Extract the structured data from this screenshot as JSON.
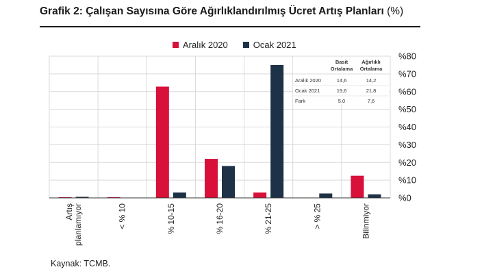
{
  "title": "Grafik 2: Çalışan Sayısına Göre Ağırlıklandırılmış Ücret Artış Planları",
  "title_suffix": "(%)",
  "source": "Kaynak: TCMB.",
  "colors": {
    "series1": "#d8103a",
    "series2": "#1d3147",
    "grid": "#d9d9d9",
    "axis": "#333333"
  },
  "chart_data": {
    "type": "bar",
    "categories": [
      "Artış planlamıyor",
      "< % 10",
      "% 10-15",
      "% 16-20",
      "% 21-25",
      "> % 25",
      "Bilinmiyor"
    ],
    "category_lines": [
      [
        "Artış",
        "planlamıyor"
      ],
      [
        "< % 10"
      ],
      [
        "% 10-15"
      ],
      [
        "% 16-20"
      ],
      [
        "% 21-25"
      ],
      [
        "> % 25"
      ],
      [
        "Bilinmiyor"
      ]
    ],
    "series": [
      {
        "name": "Aralık 2020",
        "values": [
          0.3,
          0.4,
          62.8,
          22.0,
          3.0,
          0.0,
          12.5
        ]
      },
      {
        "name": "Ocak 2021",
        "values": [
          0.6,
          0.0,
          3.0,
          18.0,
          75.0,
          2.5,
          2.0
        ]
      }
    ],
    "ylim": [
      0,
      80
    ],
    "yticks": [
      0,
      10,
      20,
      30,
      40,
      50,
      60,
      70,
      80
    ],
    "ytick_labels": [
      "%0",
      "%10",
      "%20",
      "%30",
      "%40",
      "%50",
      "%60",
      "%70",
      "%80"
    ],
    "y_axis_side": "right",
    "grid": true,
    "legend_position": "top",
    "table": {
      "headers": [
        [
          "Basit",
          "Ortalama"
        ],
        [
          "Ağırlıklı",
          "Ortalama"
        ]
      ],
      "rows": [
        {
          "label": "Aralık 2020",
          "values": [
            "14,6",
            "14,2"
          ]
        },
        {
          "label": "Ocak 2021",
          "values": [
            "19,6",
            "21,8"
          ]
        },
        {
          "label": "Fark",
          "values": [
            "5,0",
            "7,6"
          ]
        }
      ]
    }
  }
}
